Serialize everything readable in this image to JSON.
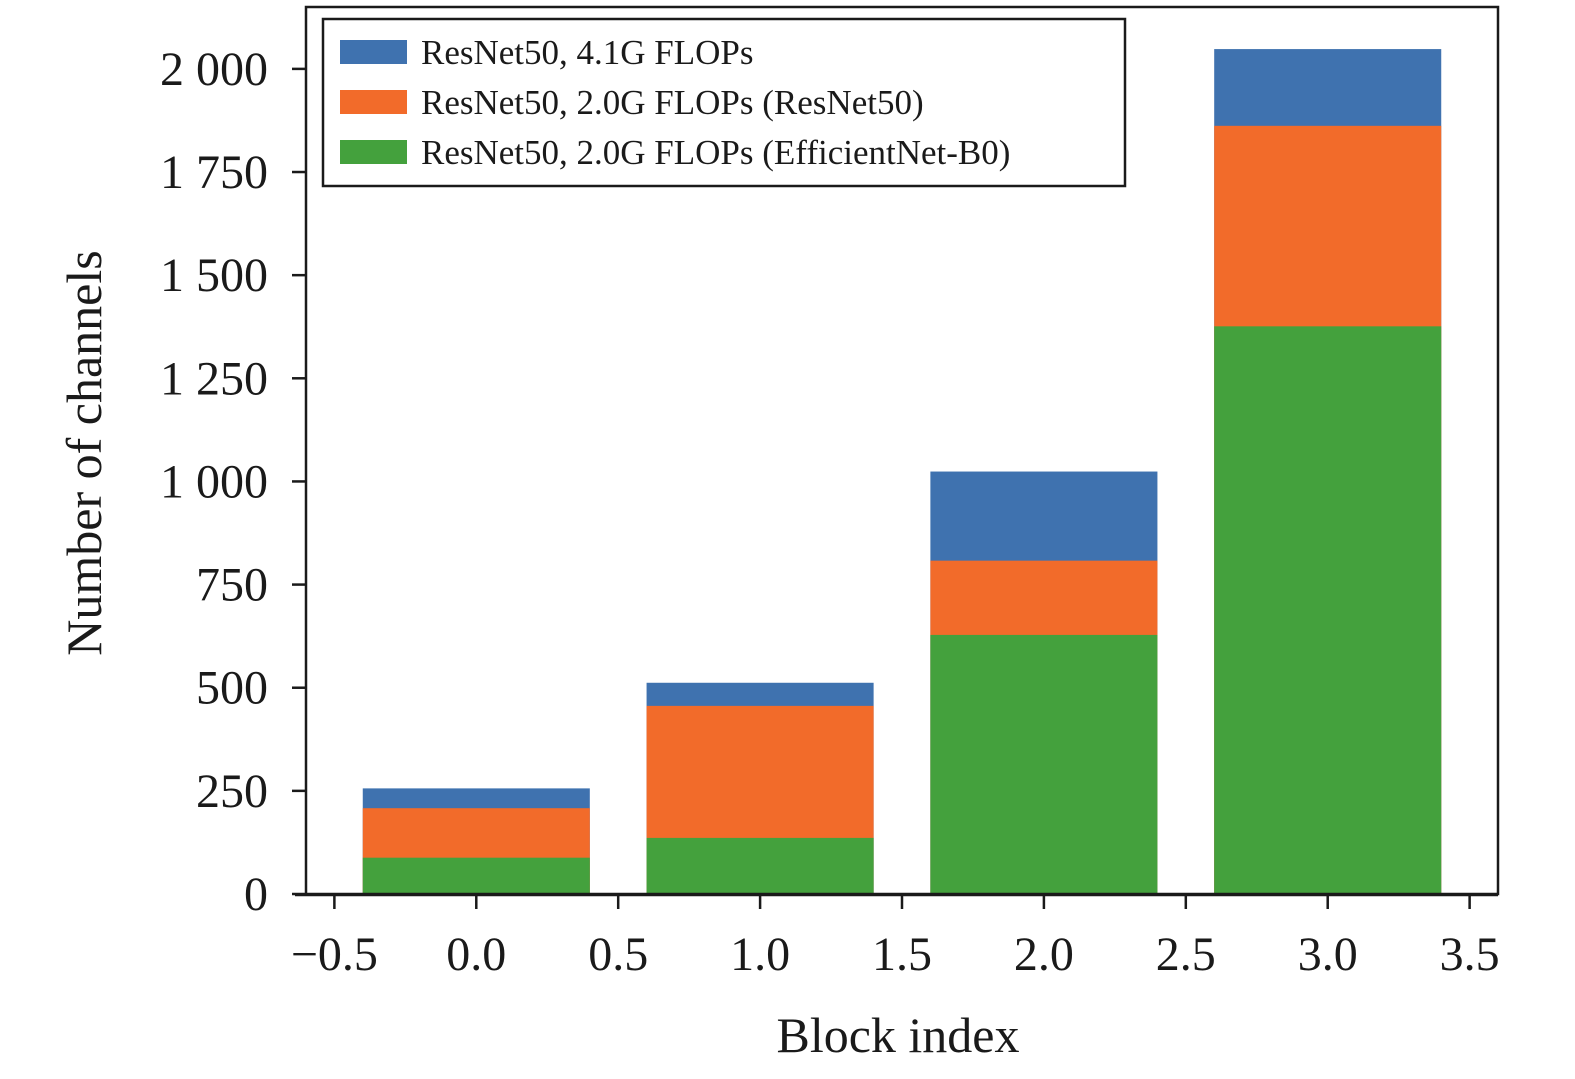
{
  "chart_data": {
    "type": "bar",
    "stacked": "overlay",
    "title": "",
    "xlabel": "Block index",
    "ylabel": "Number of channels",
    "xlim": [
      -0.6,
      3.6
    ],
    "ylim": [
      0,
      2150
    ],
    "grid": false,
    "legend_position": "top-left",
    "x": [
      0,
      1,
      2,
      3
    ],
    "bar_width": 0.8,
    "x_ticks": [
      {
        "value": -0.5,
        "label": "−0.5"
      },
      {
        "value": 0.0,
        "label": "0.0"
      },
      {
        "value": 0.5,
        "label": "0.5"
      },
      {
        "value": 1.0,
        "label": "1.0"
      },
      {
        "value": 1.5,
        "label": "1.5"
      },
      {
        "value": 2.0,
        "label": "2.0"
      },
      {
        "value": 2.5,
        "label": "2.5"
      },
      {
        "value": 3.0,
        "label": "3.0"
      },
      {
        "value": 3.5,
        "label": "3.5"
      }
    ],
    "y_ticks": [
      {
        "value": 0,
        "label": "0"
      },
      {
        "value": 250,
        "label": "250"
      },
      {
        "value": 500,
        "label": "500"
      },
      {
        "value": 750,
        "label": "750"
      },
      {
        "value": 1000,
        "label": "1 000"
      },
      {
        "value": 1250,
        "label": "1 250"
      },
      {
        "value": 1500,
        "label": "1 500"
      },
      {
        "value": 1750,
        "label": "1 750"
      },
      {
        "value": 2000,
        "label": "2 000"
      }
    ],
    "series": [
      {
        "name": "ResNet50, 4.1G FLOPs",
        "color": "#3f72af",
        "values": [
          256,
          512,
          1024,
          2048
        ]
      },
      {
        "name": "ResNet50, 2.0G FLOPs (ResNet50)",
        "color": "#f26b2a",
        "values": [
          208,
          456,
          808,
          1862
        ]
      },
      {
        "name": "ResNet50, 2.0G FLOPs (EfficientNet-B0)",
        "color": "#44a13d",
        "values": [
          88,
          136,
          628,
          1376
        ]
      }
    ]
  }
}
